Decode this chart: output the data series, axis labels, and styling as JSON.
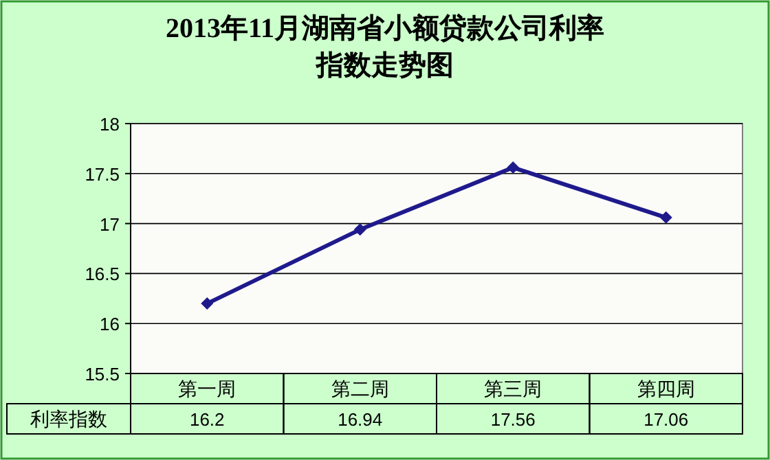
{
  "chart_data": {
    "type": "line",
    "title": "2013年11月湖南省小额贷款公司利率指数走势图",
    "categories": [
      "第一周",
      "第二周",
      "第三周",
      "第四周"
    ],
    "series": [
      {
        "name": "利率指数",
        "color": "#1f1a8c",
        "values": [
          16.2,
          16.94,
          17.56,
          17.06
        ]
      }
    ],
    "ylim": [
      15.5,
      18
    ],
    "yticks": [
      15.5,
      16,
      16.5,
      17,
      17.5,
      18
    ],
    "grid": "y",
    "marker": "diamond",
    "line_style": "solid",
    "data_labels": true
  }
}
